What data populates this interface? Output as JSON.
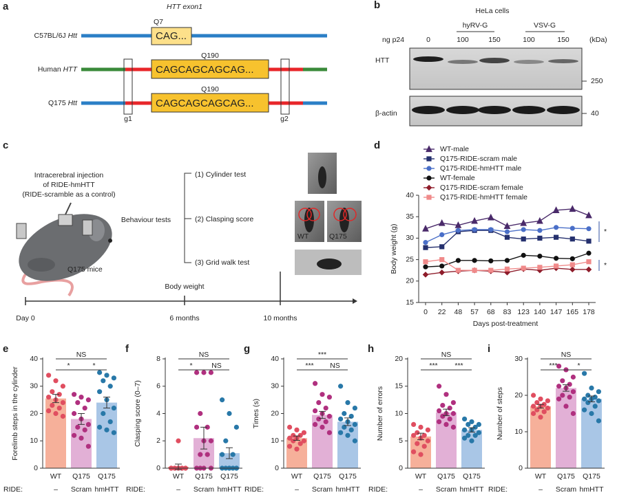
{
  "panel_a": {
    "letter": "a",
    "title": "HTT exon1",
    "rows": [
      {
        "strain": "C57BL/6J ",
        "gene": "Htt",
        "repeat": "Q7",
        "sequence": "CAG..."
      },
      {
        "strain": "Human ",
        "gene": "HTT",
        "repeat": "Q190",
        "sequence": "CAGCAGCAGCAG..."
      },
      {
        "strain": "Q175 ",
        "gene": "Htt",
        "repeat": "Q190",
        "sequence": "CAGCAGCAGCAG..."
      }
    ],
    "cut_sites": [
      "g1",
      "g2"
    ]
  },
  "panel_b": {
    "letter": "b",
    "title": "HeLa cells",
    "groups": [
      "hyRV-G",
      "VSV-G"
    ],
    "dose_label": "ng p24",
    "lanes": [
      "0",
      "100",
      "150",
      "100",
      "150"
    ],
    "unit": "(kDa)",
    "blots": [
      {
        "label": "HTT",
        "marker": "250"
      },
      {
        "label": "β-actin",
        "marker": "40"
      }
    ]
  },
  "panel_c": {
    "letter": "c",
    "injection": [
      "Intracerebral injection",
      "of RIDE-hmHTT",
      "(RIDE-scramble as a control)"
    ],
    "mice": "Q175 mice",
    "behaviour": "Behaviour tests",
    "tests": [
      "(1) Cylinder test",
      "(2) Clasping score",
      "(3) Grid walk test"
    ],
    "photo_labels": [
      "WT",
      "Q175"
    ],
    "body_weight": "Body weight",
    "timeline": [
      "Day 0",
      "6 months",
      "10 months"
    ]
  },
  "chart_data": [
    {
      "type": "line",
      "panel": "d",
      "ylabel": "Body weight (g)",
      "xlabel": "Days post-treatment",
      "categories": [
        "0",
        "22",
        "48",
        "57",
        "68",
        "83",
        "123",
        "140",
        "147",
        "165",
        "178"
      ],
      "ylim": [
        15,
        40
      ],
      "yticks": [
        15,
        20,
        25,
        30,
        35,
        40
      ],
      "legend": "top-left",
      "annotations": [
        "*",
        "*"
      ],
      "annotation_color": "#3050a0",
      "series": [
        {
          "name": "WT-male",
          "color": "#4a2a6a",
          "marker": "triangle",
          "values": [
            32.2,
            33.5,
            33,
            34,
            34.8,
            32.8,
            33.5,
            34,
            36.5,
            36.8,
            35.3
          ]
        },
        {
          "name": "Q175-RIDE-scram male",
          "color": "#25306e",
          "marker": "square",
          "values": [
            27.8,
            28,
            31.5,
            31.8,
            31.8,
            30.2,
            29.8,
            30,
            30.2,
            29.8,
            29.3
          ]
        },
        {
          "name": "Q175-RIDE-hmHTT male",
          "color": "#4a6fc8",
          "marker": "circle",
          "values": [
            29,
            30.8,
            31.8,
            32,
            32,
            31.5,
            32,
            31.8,
            32.5,
            32.3,
            32.2
          ]
        },
        {
          "name": "WT-female",
          "color": "#111111",
          "marker": "circle",
          "values": [
            23.3,
            23.5,
            24.8,
            24.8,
            24.7,
            24.8,
            26,
            25.8,
            25.3,
            25.2,
            26.5
          ]
        },
        {
          "name": "Q175-RIDE-scram female",
          "color": "#8e1c2a",
          "marker": "diamond",
          "values": [
            21.5,
            22,
            22.3,
            22.5,
            22.3,
            22,
            22.8,
            22.5,
            23,
            22.7,
            22.7
          ]
        },
        {
          "name": "Q175-RIDE-hmHTT female",
          "color": "#f08a8a",
          "marker": "square",
          "values": [
            24.5,
            25,
            22.5,
            22.5,
            22.5,
            22.8,
            23,
            23.2,
            23.5,
            23.8,
            24.5
          ]
        }
      ]
    },
    {
      "type": "bar",
      "panel": "e",
      "ylabel": "Forelimb steps in the cylinder",
      "ylim": [
        0,
        40
      ],
      "yticks": [
        0,
        10,
        20,
        30,
        40
      ],
      "categories": [
        "WT",
        "Q175",
        "Q175"
      ],
      "subcategories": [
        "–",
        "Scram",
        "hmHTT"
      ],
      "group_label": "RIDE:",
      "values": [
        25.5,
        18,
        24
      ],
      "errors": [
        1.5,
        2,
        2
      ],
      "bar_colors": [
        "#f6b09a",
        "#e2b0d6",
        "#a9c6e6"
      ],
      "point_colors": [
        "#e04e60",
        "#b0307f",
        "#2878a8"
      ],
      "points": [
        [
          34,
          32,
          30,
          28,
          27,
          26,
          25,
          24,
          23,
          22,
          21,
          20,
          19
        ],
        [
          27,
          26,
          25,
          24,
          22,
          20,
          18,
          16,
          15,
          14,
          12,
          11,
          8
        ],
        [
          35,
          34,
          33,
          32,
          30,
          28,
          25,
          22,
          20,
          17,
          15,
          14,
          13
        ]
      ],
      "significance": {
        "outer": "NS",
        "left": "*",
        "right": "*"
      }
    },
    {
      "type": "bar",
      "panel": "f",
      "ylabel": "Clasping score (0–7)",
      "ylim": [
        0,
        8
      ],
      "yticks": [
        0,
        2,
        4,
        6,
        8
      ],
      "categories": [
        "WT",
        "Q175",
        "Q175"
      ],
      "subcategories": [
        "–",
        "Scram",
        "hmHTT"
      ],
      "group_label": "RIDE:",
      "values": [
        0.1,
        2.2,
        1.1
      ],
      "errors": [
        0.2,
        0.8,
        0.4
      ],
      "bar_colors": [
        "#f6b09a",
        "#e2b0d6",
        "#a9c6e6"
      ],
      "point_colors": [
        "#e04e60",
        "#b0307f",
        "#2878a8"
      ],
      "points": [
        [
          0,
          0,
          0,
          0,
          0,
          0,
          0,
          0,
          0,
          0,
          0,
          2
        ],
        [
          7,
          7,
          7,
          4,
          3,
          3,
          2,
          2,
          1,
          1,
          0,
          0,
          0,
          0
        ],
        [
          5,
          4,
          3,
          2,
          1,
          1,
          0,
          0,
          0,
          0,
          0,
          0,
          0
        ]
      ],
      "significance": {
        "outer": "NS",
        "left": "*",
        "right": "NS"
      }
    },
    {
      "type": "bar",
      "panel": "g",
      "ylabel": "Times (s)",
      "ylim": [
        0,
        40
      ],
      "yticks": [
        0,
        10,
        20,
        30,
        40
      ],
      "categories": [
        "WT",
        "Q175",
        "Q175"
      ],
      "subcategories": [
        "–",
        "Scram",
        "hmHTT"
      ],
      "group_label": "RIDE:",
      "values": [
        11,
        19.5,
        17
      ],
      "errors": [
        0.8,
        1.3,
        1.4
      ],
      "bar_colors": [
        "#f6b09a",
        "#e2b0d6",
        "#a9c6e6"
      ],
      "point_colors": [
        "#e04e60",
        "#b0307f",
        "#2878a8"
      ],
      "points": [
        [
          15,
          14,
          13,
          12,
          12,
          11,
          11,
          10,
          10,
          9,
          8,
          7
        ],
        [
          31,
          27,
          26,
          24,
          22,
          21,
          20,
          19,
          18,
          17,
          16,
          15,
          13
        ],
        [
          30,
          24,
          22,
          20,
          19,
          18,
          17,
          16,
          15,
          14,
          13,
          12,
          10
        ]
      ],
      "significance": {
        "outer": "***",
        "left": "***",
        "right": "NS"
      }
    },
    {
      "type": "bar",
      "panel": "h",
      "ylabel": "Number of errors",
      "ylim": [
        0,
        20
      ],
      "yticks": [
        0,
        5,
        10,
        15,
        20
      ],
      "categories": [
        "WT",
        "Q175",
        "Q175"
      ],
      "subcategories": [
        "–",
        "Scram",
        "hmHTT"
      ],
      "group_label": "RIDE:",
      "values": [
        5.8,
        10.2,
        7
      ],
      "errors": [
        0.6,
        0.6,
        0.4
      ],
      "bar_colors": [
        "#f6b09a",
        "#e2b0d6",
        "#a9c6e6"
      ],
      "point_colors": [
        "#e04e60",
        "#b0307f",
        "#2878a8"
      ],
      "points": [
        [
          8,
          7.5,
          7,
          6.5,
          6,
          6,
          5.5,
          5,
          4.5,
          4,
          3,
          2.5
        ],
        [
          15,
          13.5,
          12,
          11.5,
          11,
          10.5,
          10,
          10,
          9.5,
          9,
          8.5,
          8,
          7.5
        ],
        [
          9,
          8.5,
          8,
          8,
          7.5,
          7,
          7,
          6.5,
          6,
          6,
          5.5,
          5
        ]
      ],
      "significance": {
        "outer": "NS",
        "left": "***",
        "right": "***"
      }
    },
    {
      "type": "bar",
      "panel": "i",
      "ylabel": "Number of steps",
      "ylim": [
        0,
        30
      ],
      "yticks": [
        0,
        10,
        20,
        30
      ],
      "categories": [
        "WT",
        "Q175",
        "Q175"
      ],
      "subcategories": [
        "–",
        "Scram",
        "hmHTT"
      ],
      "group_label": "RIDE:",
      "values": [
        17,
        22,
        19
      ],
      "errors": [
        0.5,
        0.9,
        0.8
      ],
      "bar_colors": [
        "#f6b09a",
        "#e2b0d6",
        "#a9c6e6"
      ],
      "point_colors": [
        "#e04e60",
        "#b0307f",
        "#2878a8"
      ],
      "points": [
        [
          20,
          19,
          18.5,
          18,
          17.5,
          17,
          17,
          16.5,
          16,
          15.5,
          15,
          14
        ],
        [
          28,
          27,
          25,
          24,
          23,
          22.5,
          22,
          21,
          20,
          19.5,
          19,
          17,
          15
        ],
        [
          26,
          22,
          21,
          20,
          19.5,
          19,
          19,
          18.5,
          18,
          17,
          16,
          15,
          13
        ]
      ],
      "significance": {
        "outer": "NS",
        "left": "***",
        "right": "*"
      }
    }
  ]
}
